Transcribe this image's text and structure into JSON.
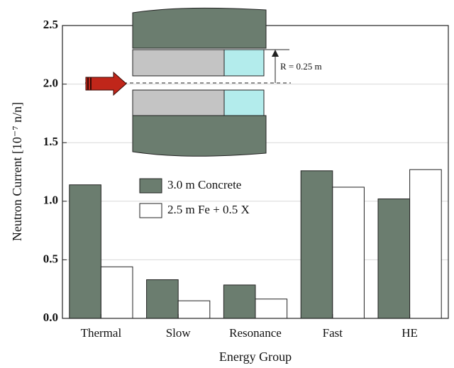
{
  "chart_data": {
    "type": "bar",
    "x_label": "Energy Group",
    "y_label": "Neutron Current [10⁻⁷ n/n]",
    "annotation": "R = 0.25 m",
    "categories": [
      "Thermal",
      "Slow",
      "Resonance",
      "Fast",
      "HE"
    ],
    "series": [
      {
        "name": "3.0 m Concrete",
        "color": "#6b7d6f",
        "values": [
          1.14,
          0.33,
          0.285,
          1.26,
          1.02
        ]
      },
      {
        "name": "2.5 m Fe + 0.5 X",
        "color": "#ffffff",
        "values": [
          0.44,
          0.15,
          0.165,
          1.12,
          1.27
        ]
      }
    ],
    "ylim": [
      0,
      2.5
    ],
    "yticks": [
      {
        "value": 0,
        "label": "0.0"
      },
      {
        "value": 0.5,
        "label": "0.5"
      },
      {
        "value": 1,
        "label": "1.0"
      },
      {
        "value": 1.5,
        "label": "1.5"
      },
      {
        "value": 2,
        "label": "2.0"
      },
      {
        "value": 2.5,
        "label": "2.5"
      }
    ],
    "grid": true
  }
}
